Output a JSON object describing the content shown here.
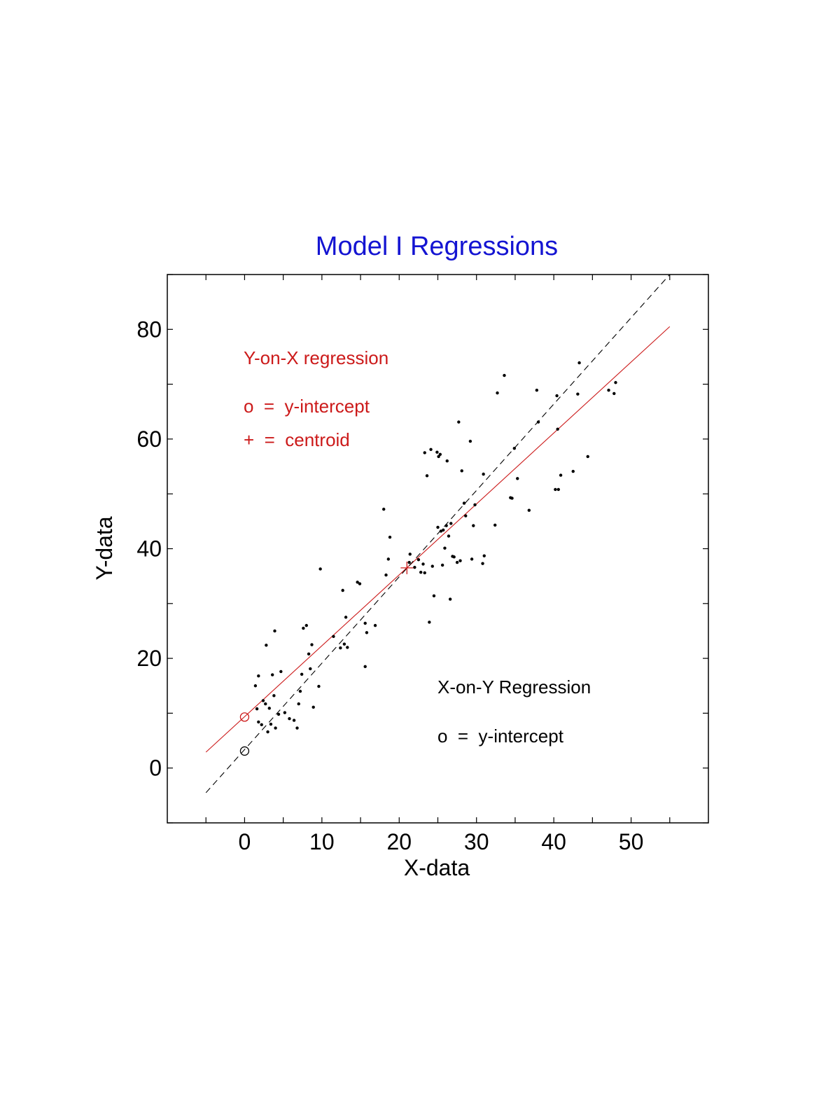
{
  "chart_data": {
    "type": "scatter",
    "title": "Model I Regressions",
    "xlabel": "X-data",
    "ylabel": "Y-data",
    "xlim": [
      -10,
      60
    ],
    "ylim": [
      -10,
      90
    ],
    "xticks": [
      0,
      10,
      20,
      30,
      40,
      50
    ],
    "xtick_labels": [
      "0",
      "10",
      "20",
      "30",
      "40",
      "50"
    ],
    "yticks": [
      0,
      20,
      40,
      60,
      80
    ],
    "ytick_labels": [
      "0",
      "20",
      "40",
      "60",
      "80"
    ],
    "grid": false,
    "colors": {
      "title": "#1414d2",
      "points": "#000000",
      "y_on_x": "#cc1a1a",
      "x_on_y": "#000000"
    },
    "points": [
      [
        1.4,
        15.0
      ],
      [
        1.8,
        16.8
      ],
      [
        1.6,
        10.8
      ],
      [
        1.8,
        8.4
      ],
      [
        2.2,
        7.9
      ],
      [
        2.4,
        12.3
      ],
      [
        2.7,
        11.7
      ],
      [
        2.8,
        22.4
      ],
      [
        3.0,
        6.6
      ],
      [
        3.2,
        10.9
      ],
      [
        3.4,
        8.0
      ],
      [
        3.6,
        17.0
      ],
      [
        3.8,
        13.2
      ],
      [
        3.9,
        25.0
      ],
      [
        4.0,
        7.3
      ],
      [
        4.4,
        9.8
      ],
      [
        4.7,
        17.6
      ],
      [
        5.2,
        10.1
      ],
      [
        5.8,
        9.0
      ],
      [
        6.4,
        8.7
      ],
      [
        6.8,
        7.3
      ],
      [
        7.0,
        11.7
      ],
      [
        7.2,
        14.0
      ],
      [
        7.4,
        17.1
      ],
      [
        7.6,
        25.5
      ],
      [
        8.0,
        26.0
      ],
      [
        8.3,
        20.8
      ],
      [
        8.5,
        18.1
      ],
      [
        8.7,
        22.5
      ],
      [
        8.9,
        11.1
      ],
      [
        9.6,
        14.9
      ],
      [
        9.8,
        36.3
      ],
      [
        11.5,
        24.0
      ],
      [
        12.4,
        21.9
      ],
      [
        12.7,
        32.4
      ],
      [
        12.9,
        22.6
      ],
      [
        13.1,
        27.5
      ],
      [
        13.3,
        22.0
      ],
      [
        14.6,
        33.9
      ],
      [
        14.9,
        33.6
      ],
      [
        15.6,
        26.4
      ],
      [
        15.8,
        24.7
      ],
      [
        15.6,
        18.5
      ],
      [
        16.9,
        26.0
      ],
      [
        18.0,
        47.2
      ],
      [
        18.3,
        35.2
      ],
      [
        18.6,
        38.1
      ],
      [
        18.8,
        42.1
      ],
      [
        21.3,
        37.5
      ],
      [
        21.4,
        39.0
      ],
      [
        22.0,
        36.6
      ],
      [
        22.5,
        38.0
      ],
      [
        22.8,
        35.7
      ],
      [
        23.1,
        37.2
      ],
      [
        23.3,
        35.6
      ],
      [
        23.3,
        57.5
      ],
      [
        23.6,
        53.3
      ],
      [
        23.9,
        26.6
      ],
      [
        24.1,
        58.1
      ],
      [
        24.3,
        36.8
      ],
      [
        24.5,
        31.4
      ],
      [
        24.9,
        57.6
      ],
      [
        25.0,
        43.9
      ],
      [
        25.1,
        56.8
      ],
      [
        25.3,
        57.2
      ],
      [
        25.4,
        43.2
      ],
      [
        25.6,
        37.0
      ],
      [
        25.7,
        43.4
      ],
      [
        25.9,
        40.1
      ],
      [
        26.1,
        44.2
      ],
      [
        26.2,
        56.0
      ],
      [
        26.4,
        42.3
      ],
      [
        26.6,
        30.8
      ],
      [
        26.7,
        44.6
      ],
      [
        26.9,
        38.6
      ],
      [
        27.1,
        38.5
      ],
      [
        27.5,
        37.5
      ],
      [
        27.7,
        63.1
      ],
      [
        27.9,
        37.8
      ],
      [
        28.1,
        54.2
      ],
      [
        28.4,
        48.3
      ],
      [
        28.6,
        46.0
      ],
      [
        29.2,
        59.6
      ],
      [
        29.4,
        38.1
      ],
      [
        29.6,
        44.2
      ],
      [
        29.8,
        48.0
      ],
      [
        30.8,
        37.3
      ],
      [
        30.9,
        53.6
      ],
      [
        31.0,
        38.7
      ],
      [
        32.4,
        44.3
      ],
      [
        32.7,
        68.4
      ],
      [
        33.6,
        71.6
      ],
      [
        34.4,
        49.3
      ],
      [
        34.6,
        49.2
      ],
      [
        34.9,
        58.3
      ],
      [
        35.3,
        52.8
      ],
      [
        36.8,
        47.0
      ],
      [
        37.8,
        68.9
      ],
      [
        38.0,
        63.1
      ],
      [
        40.2,
        50.8
      ],
      [
        40.4,
        67.9
      ],
      [
        40.5,
        61.8
      ],
      [
        40.6,
        50.8
      ],
      [
        40.9,
        53.4
      ],
      [
        42.5,
        54.1
      ],
      [
        43.1,
        68.2
      ],
      [
        43.3,
        73.9
      ],
      [
        44.4,
        56.8
      ],
      [
        47.1,
        68.9
      ],
      [
        47.8,
        68.3
      ],
      [
        48.0,
        70.3
      ]
    ],
    "regression_lines": [
      {
        "kind": "Y-on-X",
        "x_range": [
          -5,
          55
        ],
        "y_range": [
          2.9,
          80.5
        ],
        "style": "solid"
      },
      {
        "kind": "X-on-Y",
        "x_range": [
          -5,
          55
        ],
        "y_range": [
          -4.5,
          90.0
        ],
        "style": "dashed"
      }
    ],
    "markers": {
      "y_on_x_intercept": [
        0,
        9.3
      ],
      "x_on_y_intercept": [
        0,
        3.1
      ],
      "centroid": [
        21,
        36.5
      ]
    },
    "annotations": {
      "y_on_x_title": "Y-on-X regression",
      "y_on_x_intercept_key": "o  =  y-intercept",
      "centroid_key": "+  =  centroid",
      "x_on_y_title": "X-on-Y Regression",
      "x_on_y_intercept_key": "o  =  y-intercept"
    }
  }
}
